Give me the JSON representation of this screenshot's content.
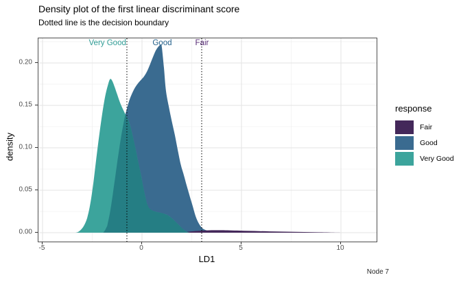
{
  "title": "Density plot of the first linear discriminant score",
  "subtitle": "Dotted line is the decision boundary",
  "caption": "Node 7",
  "axes": {
    "x": {
      "label": "LD1",
      "tick_values": [
        -5,
        0,
        5,
        10
      ],
      "tick_labels": [
        "-5",
        "0",
        "5",
        "10"
      ],
      "minor_values": [
        -2.5,
        2.5,
        7.5
      ]
    },
    "y": {
      "label": "density",
      "tick_values": [
        0.0,
        0.05,
        0.1,
        0.15,
        0.2
      ],
      "tick_labels": [
        "0.00",
        "0.05",
        "0.10",
        "0.15",
        "0.20"
      ],
      "minor_values": [
        0.025,
        0.075,
        0.125,
        0.175,
        0.225
      ]
    }
  },
  "legend": {
    "title": "response",
    "items": [
      {
        "label": "Fair",
        "color": "#44285a"
      },
      {
        "label": "Good",
        "color": "#3a6b90"
      },
      {
        "label": "Very Good",
        "color": "#3ca49c"
      }
    ]
  },
  "annotations": [
    {
      "text": "Very Good",
      "x": -1.7,
      "color": "#2e9c95"
    },
    {
      "text": "Good",
      "x": 1.05,
      "color": "#25628c"
    },
    {
      "text": "Fair",
      "x": 3.05,
      "color": "#582c77"
    }
  ],
  "chart_data": {
    "type": "area",
    "title": "Density plot of the first linear discriminant score",
    "xlabel": "LD1",
    "ylabel": "density",
    "xlim": [
      -5.207,
      11.793
    ],
    "ylim": [
      -0.0105,
      0.229
    ],
    "grid": "on",
    "legend_position": "right",
    "decision_boundaries": [
      -0.76,
      3.0
    ],
    "overlap_color": "#257e84",
    "boundary_line_color": "#000000",
    "series": [
      {
        "name": "Fair",
        "color": "#44285a",
        "points": [
          [
            1.9,
            0
          ],
          [
            2.1,
            0.0006
          ],
          [
            2.35,
            0.0012
          ],
          [
            2.6,
            0.0017
          ],
          [
            2.9,
            0.0022
          ],
          [
            3.2,
            0.0026
          ],
          [
            3.6,
            0.0029
          ],
          [
            4.0,
            0.0029
          ],
          [
            4.4,
            0.0027
          ],
          [
            4.9,
            0.0024
          ],
          [
            5.4,
            0.0021
          ],
          [
            5.9,
            0.0018
          ],
          [
            6.4,
            0.0015
          ],
          [
            6.9,
            0.0013
          ],
          [
            7.4,
            0.0011
          ],
          [
            7.9,
            0.0009
          ],
          [
            8.4,
            0.0007
          ],
          [
            8.9,
            0.0005
          ],
          [
            9.4,
            0.0003
          ],
          [
            9.8,
            0.0001
          ],
          [
            10.0,
            0
          ]
        ]
      },
      {
        "name": "Good",
        "color": "#3a6b90",
        "points": [
          [
            -1.95,
            0
          ],
          [
            -1.85,
            0.003
          ],
          [
            -1.75,
            0.008
          ],
          [
            -1.62,
            0.022
          ],
          [
            -1.5,
            0.04
          ],
          [
            -1.38,
            0.06
          ],
          [
            -1.25,
            0.082
          ],
          [
            -1.12,
            0.103
          ],
          [
            -1.0,
            0.12
          ],
          [
            -0.88,
            0.135
          ],
          [
            -0.75,
            0.147
          ],
          [
            -0.62,
            0.157
          ],
          [
            -0.5,
            0.164
          ],
          [
            -0.35,
            0.171
          ],
          [
            -0.2,
            0.176
          ],
          [
            -0.05,
            0.18
          ],
          [
            0.1,
            0.184
          ],
          [
            0.25,
            0.19
          ],
          [
            0.4,
            0.198
          ],
          [
            0.55,
            0.207
          ],
          [
            0.7,
            0.215
          ],
          [
            0.85,
            0.22
          ],
          [
            0.95,
            0.2215
          ],
          [
            1.0,
            0.218
          ],
          [
            1.1,
            0.195
          ],
          [
            1.2,
            0.168
          ],
          [
            1.35,
            0.148
          ],
          [
            1.5,
            0.131
          ],
          [
            1.65,
            0.115
          ],
          [
            1.8,
            0.097
          ],
          [
            1.95,
            0.08
          ],
          [
            2.1,
            0.068
          ],
          [
            2.25,
            0.055
          ],
          [
            2.4,
            0.043
          ],
          [
            2.55,
            0.031
          ],
          [
            2.7,
            0.019
          ],
          [
            2.85,
            0.011
          ],
          [
            3.0,
            0.006
          ],
          [
            3.15,
            0.0035
          ],
          [
            3.35,
            0.0022
          ],
          [
            3.6,
            0.0016
          ],
          [
            3.9,
            0.0012
          ],
          [
            4.2,
            0.0008
          ],
          [
            4.5,
            0.0004
          ],
          [
            4.75,
            0
          ]
        ]
      },
      {
        "name": "Very Good",
        "color": "#3ca49c",
        "points": [
          [
            -3.35,
            0
          ],
          [
            -3.2,
            0.001
          ],
          [
            -3.05,
            0.004
          ],
          [
            -2.9,
            0.009
          ],
          [
            -2.75,
            0.018
          ],
          [
            -2.6,
            0.034
          ],
          [
            -2.45,
            0.058
          ],
          [
            -2.3,
            0.087
          ],
          [
            -2.15,
            0.115
          ],
          [
            -2.0,
            0.14
          ],
          [
            -1.85,
            0.161
          ],
          [
            -1.7,
            0.175
          ],
          [
            -1.6,
            0.181
          ],
          [
            -1.5,
            0.179
          ],
          [
            -1.38,
            0.172
          ],
          [
            -1.25,
            0.163
          ],
          [
            -1.1,
            0.153
          ],
          [
            -0.95,
            0.145
          ],
          [
            -0.8,
            0.138
          ],
          [
            -0.67,
            0.132
          ],
          [
            -0.55,
            0.122
          ],
          [
            -0.42,
            0.109
          ],
          [
            -0.3,
            0.096
          ],
          [
            -0.18,
            0.082
          ],
          [
            -0.05,
            0.068
          ],
          [
            0.05,
            0.055
          ],
          [
            0.15,
            0.044
          ],
          [
            0.25,
            0.034
          ],
          [
            0.35,
            0.029
          ],
          [
            0.5,
            0.0262
          ],
          [
            0.7,
            0.0246
          ],
          [
            0.9,
            0.0236
          ],
          [
            1.1,
            0.0224
          ],
          [
            1.3,
            0.0205
          ],
          [
            1.5,
            0.017
          ],
          [
            1.7,
            0.0125
          ],
          [
            1.85,
            0.009
          ],
          [
            2.0,
            0.0055
          ],
          [
            2.15,
            0.0025
          ],
          [
            2.3,
            0.0005
          ],
          [
            2.4,
            0
          ]
        ]
      }
    ]
  }
}
